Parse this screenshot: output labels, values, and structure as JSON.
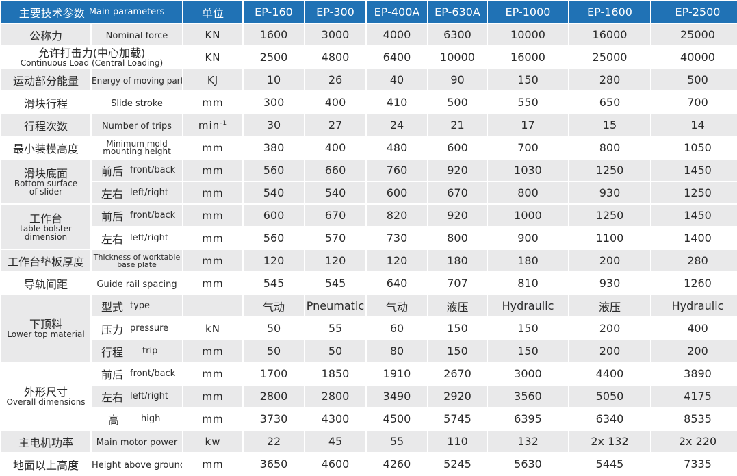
{
  "header": {
    "param_cn": "主要技术参数",
    "param_en": "Main parameters",
    "unit": "单位",
    "models": [
      "EP-160",
      "EP-300",
      "EP-400A",
      "EP-630A",
      "EP-1000",
      "EP-1600",
      "EP-2500"
    ]
  },
  "rows": {
    "nominal_force": {
      "cn": "公称力",
      "en": "Nominal force",
      "unit": "KN",
      "values": [
        "1600",
        "3000",
        "4000",
        "6300",
        "10000",
        "16000",
        "25000"
      ]
    },
    "continuous_load": {
      "cn": "允许打击力(中心加载)",
      "en": "Continuous  Load (Central Loading)",
      "unit": "KN",
      "values": [
        "2500",
        "4800",
        "6400",
        "10000",
        "16000",
        "25000",
        "40000"
      ]
    },
    "energy": {
      "cn": "运动部分能量",
      "en": "Energy of moving parts",
      "unit": "KJ",
      "values": [
        "10",
        "26",
        "40",
        "90",
        "150",
        "280",
        "500"
      ]
    },
    "slide_stroke": {
      "cn": "滑块行程",
      "en": "Slide stroke",
      "unit": "mm",
      "values": [
        "300",
        "400",
        "410",
        "500",
        "550",
        "650",
        "700"
      ]
    },
    "trips": {
      "cn": "行程次数",
      "en": "Number of trips",
      "unit": "min",
      "unit_sup": "-1",
      "values": [
        "30",
        "27",
        "24",
        "21",
        "17",
        "15",
        "14"
      ]
    },
    "mold_height": {
      "cn": "最小装模高度",
      "en1": "Minimum mold",
      "en2": "mounting height",
      "unit": "mm",
      "values": [
        "380",
        "400",
        "480",
        "600",
        "700",
        "800",
        "1050"
      ]
    },
    "slider_surface": {
      "cn": "滑块底面",
      "en1": "Bottom surface",
      "en2": "of slider",
      "front_cn": "前后",
      "front_en": "front/back",
      "front_unit": "mm",
      "front_values": [
        "560",
        "660",
        "760",
        "920",
        "1030",
        "1250",
        "1450"
      ],
      "left_cn": "左右",
      "left_en": "left/right",
      "left_unit": "mm",
      "left_values": [
        "540",
        "540",
        "600",
        "670",
        "800",
        "930",
        "1250"
      ]
    },
    "bolster": {
      "cn": "工作台",
      "en1": "table bolster",
      "en2": "dimension",
      "front_cn": "前后",
      "front_en": "front/back",
      "front_unit": "mm",
      "front_values": [
        "600",
        "670",
        "820",
        "920",
        "1000",
        "1250",
        "1450"
      ],
      "left_cn": "左右",
      "left_en": "left/right",
      "left_unit": "mm",
      "left_values": [
        "560",
        "570",
        "730",
        "800",
        "900",
        "1100",
        "1400"
      ]
    },
    "base_plate": {
      "cn": "工作台垫板厚度",
      "en1": "Thickness of worktable",
      "en2": "base plate",
      "unit": "mm",
      "values": [
        "120",
        "120",
        "120",
        "180",
        "180",
        "200",
        "280"
      ]
    },
    "guide_rail": {
      "cn": "导轨间距",
      "en": "Guide rail spacing",
      "unit": "mm",
      "values": [
        "545",
        "545",
        "640",
        "707",
        "810",
        "930",
        "1260"
      ]
    },
    "lower_top": {
      "cn": "下顶料",
      "en": "Lower top material",
      "type_cn": "型式",
      "type_en": "type",
      "type_values": [
        "气动",
        "Pneumatic",
        "气动",
        "液压",
        "Hydraulic",
        "液压",
        "Hydraulic"
      ],
      "pressure_cn": "压力",
      "pressure_en": "pressure",
      "pressure_unit": "kN",
      "pressure_values": [
        "50",
        "55",
        "60",
        "150",
        "150",
        "200",
        "400"
      ],
      "trip_cn": "行程",
      "trip_en": "trip",
      "trip_unit": "mm",
      "trip_values": [
        "50",
        "50",
        "80",
        "150",
        "150",
        "200",
        "200"
      ]
    },
    "overall": {
      "cn": "外形尺寸",
      "en": "Overall dimensions",
      "front_cn": "前后",
      "front_en": "front/back",
      "front_unit": "mm",
      "front_values": [
        "1700",
        "1850",
        "1910",
        "2670",
        "3000",
        "4400",
        "3890"
      ],
      "left_cn": "左右",
      "left_en": "left/right",
      "left_unit": "mm",
      "left_values": [
        "2800",
        "2800",
        "3490",
        "2920",
        "3560",
        "5050",
        "4175"
      ],
      "high_cn": "高",
      "high_en": "high",
      "high_unit": "mm",
      "high_values": [
        "3730",
        "4300",
        "4500",
        "5745",
        "6395",
        "6340",
        "8535"
      ]
    },
    "motor": {
      "cn": "主电机功率",
      "en": "Main motor power",
      "unit": "kw",
      "values": [
        "22",
        "45",
        "55",
        "110",
        "132",
        "2x 132",
        "2x 220"
      ]
    },
    "height_ground": {
      "cn": "地面以上高度",
      "en": "Height above ground",
      "unit": "mm",
      "values": [
        "3650",
        "4600",
        "4260",
        "5245",
        "5630",
        "5445",
        "7335"
      ]
    }
  },
  "colors": {
    "header_bg": "#2072b5",
    "row_alt": "#e9e9ea",
    "text": "#2b2b2b"
  }
}
